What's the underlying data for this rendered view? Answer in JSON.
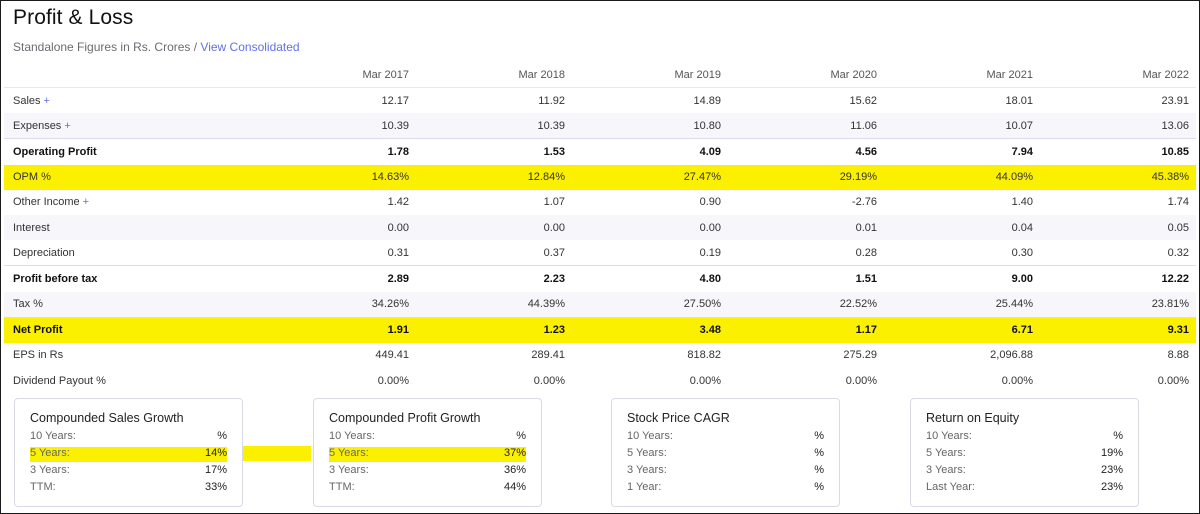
{
  "header": {
    "title": "Profit & Loss",
    "subtitle": "Standalone Figures in Rs. Crores / ",
    "link": "View Consolidated"
  },
  "table": {
    "columns": [
      "",
      "Mar 2017",
      "Mar 2018",
      "Mar 2019",
      "Mar 2020",
      "Mar 2021",
      "Mar 2022"
    ],
    "rows": [
      {
        "label": "Sales",
        "plus": "+",
        "values": [
          "12.17",
          "11.92",
          "14.89",
          "15.62",
          "18.01",
          "23.91"
        ]
      },
      {
        "label": "Expenses",
        "plus": "+",
        "values": [
          "10.39",
          "10.39",
          "10.80",
          "11.06",
          "10.07",
          "13.06"
        ]
      },
      {
        "label": "Operating Profit",
        "values": [
          "1.78",
          "1.53",
          "4.09",
          "4.56",
          "7.94",
          "10.85"
        ]
      },
      {
        "label": "OPM %",
        "values": [
          "14.63%",
          "12.84%",
          "27.47%",
          "29.19%",
          "44.09%",
          "45.38%"
        ]
      },
      {
        "label": "Other Income",
        "plus": "+",
        "values": [
          "1.42",
          "1.07",
          "0.90",
          "-2.76",
          "1.40",
          "1.74"
        ]
      },
      {
        "label": "Interest",
        "values": [
          "0.00",
          "0.00",
          "0.00",
          "0.01",
          "0.04",
          "0.05"
        ]
      },
      {
        "label": "Depreciation",
        "values": [
          "0.31",
          "0.37",
          "0.19",
          "0.28",
          "0.30",
          "0.32"
        ]
      },
      {
        "label": "Profit before tax",
        "values": [
          "2.89",
          "2.23",
          "4.80",
          "1.51",
          "9.00",
          "12.22"
        ]
      },
      {
        "label": "Tax %",
        "values": [
          "34.26%",
          "44.39%",
          "27.50%",
          "22.52%",
          "25.44%",
          "23.81%"
        ]
      },
      {
        "label": "Net Profit",
        "values": [
          "1.91",
          "1.23",
          "3.48",
          "1.17",
          "6.71",
          "9.31"
        ]
      },
      {
        "label": "EPS in Rs",
        "values": [
          "449.41",
          "289.41",
          "818.82",
          "275.29",
          "2,096.88",
          "8.88"
        ]
      },
      {
        "label": "Dividend Payout %",
        "values": [
          "0.00%",
          "0.00%",
          "0.00%",
          "0.00%",
          "0.00%",
          "0.00%"
        ]
      }
    ]
  },
  "highlight_color": "#fbf000",
  "link_color": "#6370e6",
  "cards": [
    {
      "title": "Compounded Sales Growth",
      "rows": [
        {
          "label": "10 Years:",
          "value": "%"
        },
        {
          "label": "5 Years:",
          "value": "14%"
        },
        {
          "label": "3 Years:",
          "value": "17%"
        },
        {
          "label": "TTM:",
          "value": "33%"
        }
      ]
    },
    {
      "title": "Compounded Profit Growth",
      "rows": [
        {
          "label": "10 Years:",
          "value": "%"
        },
        {
          "label": "5 Years:",
          "value": "37%"
        },
        {
          "label": "3 Years:",
          "value": "36%"
        },
        {
          "label": "TTM:",
          "value": "44%"
        }
      ]
    },
    {
      "title": "Stock Price CAGR",
      "rows": [
        {
          "label": "10 Years:",
          "value": "%"
        },
        {
          "label": "5 Years:",
          "value": "%"
        },
        {
          "label": "3 Years:",
          "value": "%"
        },
        {
          "label": "1 Year:",
          "value": "%"
        }
      ]
    },
    {
      "title": "Return on Equity",
      "rows": [
        {
          "label": "10 Years:",
          "value": "%"
        },
        {
          "label": "5 Years:",
          "value": "19%"
        },
        {
          "label": "3 Years:",
          "value": "23%"
        },
        {
          "label": "Last Year:",
          "value": "23%"
        }
      ]
    }
  ]
}
